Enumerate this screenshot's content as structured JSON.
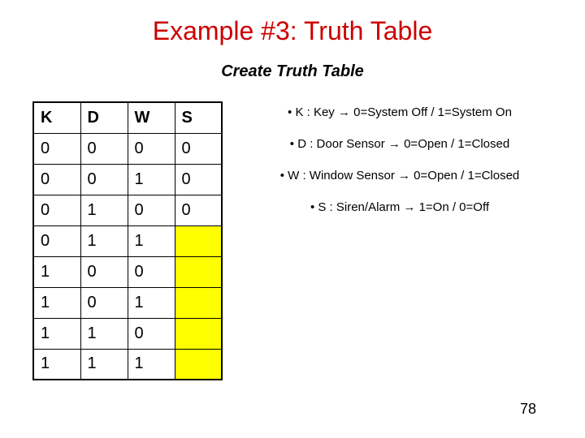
{
  "title": "Example #3: Truth Table",
  "subtitle": "Create Truth Table",
  "table": {
    "headers": [
      "K",
      "D",
      "W",
      "S"
    ],
    "rows": [
      {
        "cells": [
          "0",
          "0",
          "0",
          "0"
        ],
        "s_yellow": false
      },
      {
        "cells": [
          "0",
          "0",
          "1",
          "0"
        ],
        "s_yellow": false
      },
      {
        "cells": [
          "0",
          "1",
          "0",
          "0"
        ],
        "s_yellow": false
      },
      {
        "cells": [
          "0",
          "1",
          "1",
          ""
        ],
        "s_yellow": true
      },
      {
        "cells": [
          "1",
          "0",
          "0",
          ""
        ],
        "s_yellow": true
      },
      {
        "cells": [
          "1",
          "0",
          "1",
          ""
        ],
        "s_yellow": true
      },
      {
        "cells": [
          "1",
          "1",
          "0",
          ""
        ],
        "s_yellow": true
      },
      {
        "cells": [
          "1",
          "1",
          "1",
          ""
        ],
        "s_yellow": true
      }
    ]
  },
  "legend": {
    "items": [
      "• K : Key → 0=System Off / 1=System On",
      "• D : Door Sensor → 0=Open / 1=Closed",
      "• W : Window Sensor → 0=Open / 1=Closed",
      "• S : Siren/Alarm → 1=On / 0=Off"
    ]
  },
  "page_number": "78",
  "colors": {
    "title_color": "#cc0000",
    "yellow_fill": "#ffff00",
    "background": "#ffffff"
  }
}
